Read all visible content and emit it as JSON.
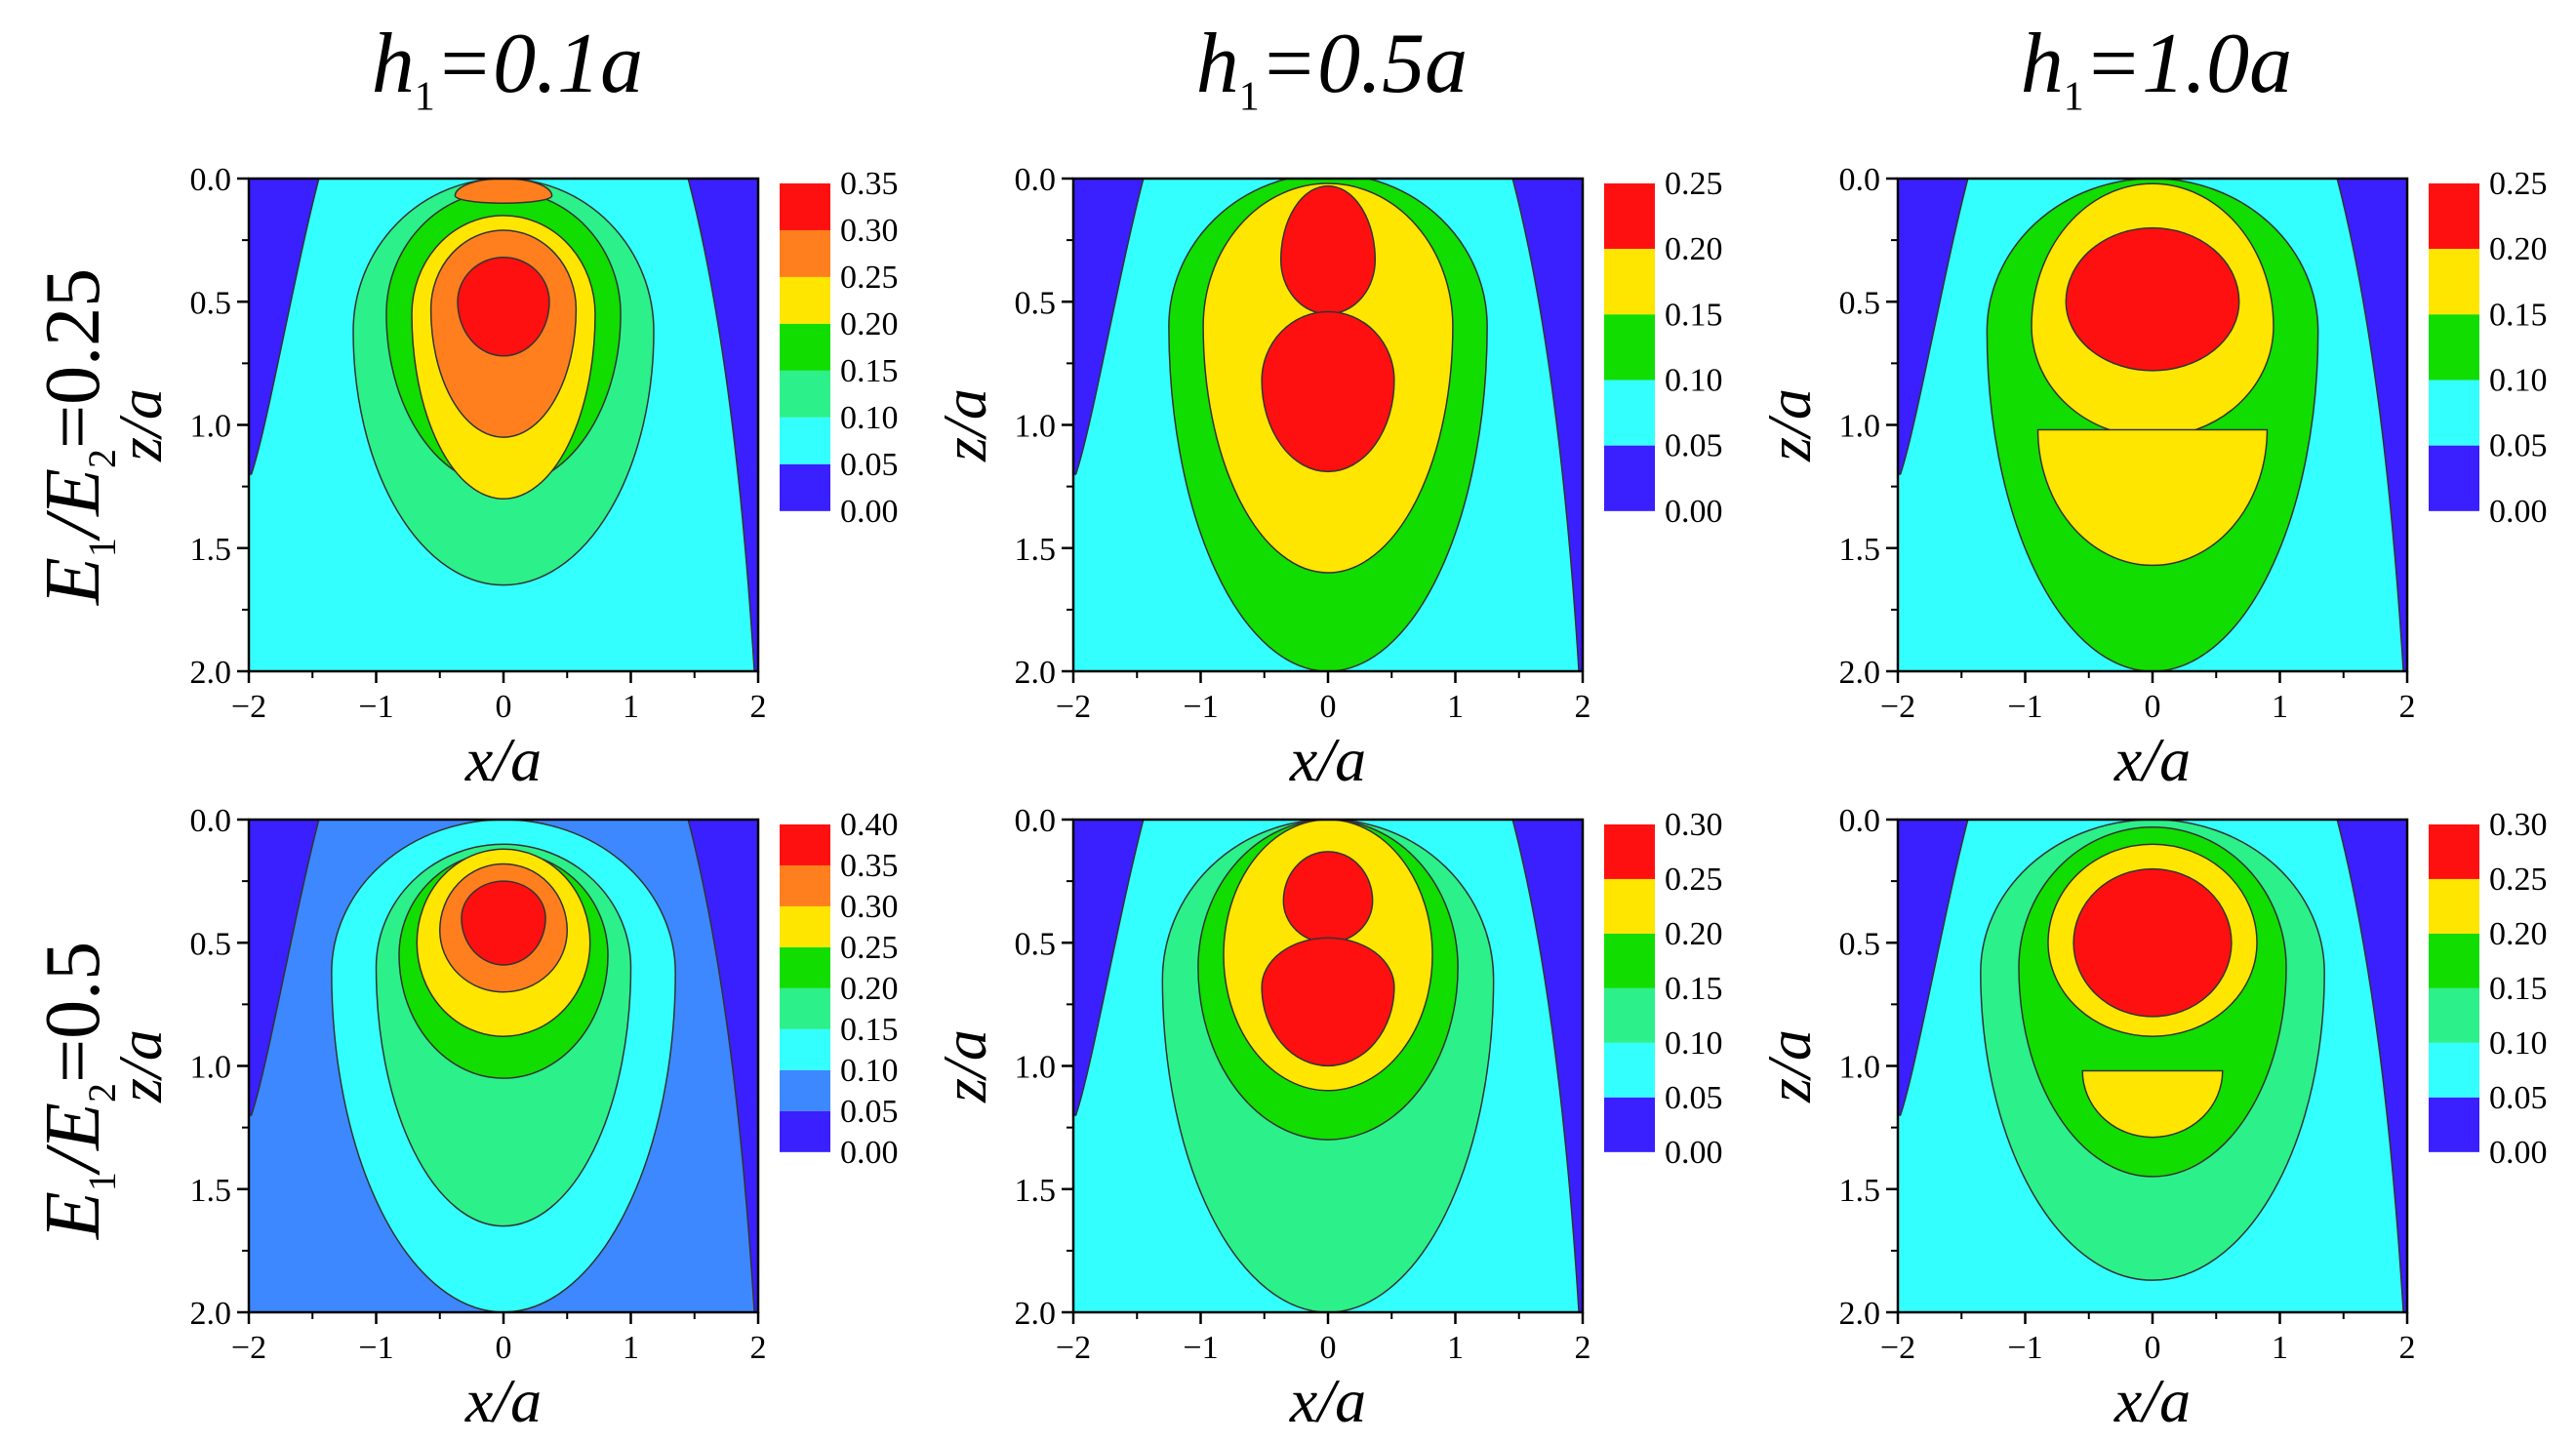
{
  "column_titles": [
    {
      "var": "h",
      "sub": "1",
      "rest": "=0.1a"
    },
    {
      "var": "h",
      "sub": "1",
      "rest": "=0.5a"
    },
    {
      "var": "h",
      "sub": "1",
      "rest": "=1.0a"
    }
  ],
  "row_labels": [
    {
      "e1": "E",
      "s1": "1",
      "mid": "/E",
      "s2": "2",
      "rest": "=0.25"
    },
    {
      "e1": "E",
      "s1": "1",
      "mid": "/E",
      "s2": "2",
      "rest": "=0.5"
    }
  ],
  "level_colors": {
    "0.00": "#3a1fff",
    "0.05": "#34ffff",
    "0.10": "#2cf08a",
    "0.15": "#11dd00",
    "0.20": "#ffe600",
    "0.25": "#ff7f1e",
    "0.30": "#ff1010",
    "0.35": "#ff1010"
  },
  "chart_data": [
    {
      "type": "contour",
      "row": 0,
      "col": 0,
      "xlabel": "x/a",
      "ylabel": "z/a",
      "xlim": [
        -2,
        2
      ],
      "ylim": [
        0,
        2
      ],
      "xticks": [
        "-2",
        "-1",
        "0",
        "1",
        "2"
      ],
      "yticks": [
        "0.0",
        "0.5",
        "1.0",
        "1.5",
        "2.0"
      ],
      "levels": [
        "0.35",
        "0.30",
        "0.25",
        "0.20",
        "0.15",
        "0.10",
        "0.05",
        "0.00"
      ],
      "level_fill": [
        "#ff1010",
        "#ff7f1e",
        "#ffe600",
        "#11dd00",
        "#2cf08a",
        "#34ffff",
        "#3a1fff"
      ],
      "background": "#34ffff",
      "regions": [
        {
          "color": "#2cf08a",
          "center": [
            0,
            0.62
          ],
          "rx": 1.18,
          "ry_up": 0.62,
          "ry_down": 1.03
        },
        {
          "color": "#11dd00",
          "center": [
            0,
            0.55
          ],
          "rx": 0.92,
          "ry_up": 0.5,
          "ry_down": 0.7
        },
        {
          "color": "#ffe600",
          "center": [
            0,
            0.55
          ],
          "rx": 0.72,
          "ry_up": 0.4,
          "ry_down": 0.75
        },
        {
          "color": "#ff7f1e",
          "center": [
            0,
            0.53
          ],
          "rx": 0.57,
          "ry_up": 0.32,
          "ry_down": 0.52
        },
        {
          "color": "#ff1010",
          "center": [
            0,
            0.5
          ],
          "rx": 0.36,
          "ry_up": 0.18,
          "ry_down": 0.22
        },
        {
          "color": "#ff7f1e",
          "center": [
            0,
            0.07
          ],
          "rx": 0.38,
          "ry_up": 0.07,
          "ry_down": 0.03
        }
      ]
    },
    {
      "type": "contour",
      "row": 0,
      "col": 1,
      "xlabel": "x/a",
      "ylabel": "z/a",
      "xlim": [
        -2,
        2
      ],
      "ylim": [
        0,
        2
      ],
      "xticks": [
        "-2",
        "-1",
        "0",
        "1",
        "2"
      ],
      "yticks": [
        "0.0",
        "0.5",
        "1.0",
        "1.5",
        "2.0"
      ],
      "levels": [
        "0.25",
        "0.20",
        "0.15",
        "0.10",
        "0.05",
        "0.00"
      ],
      "level_fill": [
        "#ff1010",
        "#ffe600",
        "#11dd00",
        "#34ffff",
        "#3a1fff"
      ],
      "background": "#34ffff",
      "regions": [
        {
          "color": "#11dd00",
          "center": [
            0,
            0.6
          ],
          "rx": 1.25,
          "ry_up": 0.62,
          "ry_down": 1.4
        },
        {
          "color": "#ffe600",
          "center": [
            0,
            0.6
          ],
          "rx": 0.98,
          "ry_up": 0.58,
          "ry_down": 1.0
        },
        {
          "color": "#ff1010",
          "center": [
            0,
            0.33
          ],
          "rx": 0.37,
          "ry_up": 0.3,
          "ry_down": 0.22
        },
        {
          "color": "#ff1010",
          "center": [
            0,
            0.82
          ],
          "rx": 0.52,
          "ry_up": 0.28,
          "ry_down": 0.37
        }
      ]
    },
    {
      "type": "contour",
      "row": 0,
      "col": 2,
      "xlabel": "x/a",
      "ylabel": "z/a",
      "xlim": [
        -2,
        2
      ],
      "ylim": [
        0,
        2
      ],
      "xticks": [
        "-2",
        "-1",
        "0",
        "1",
        "2"
      ],
      "yticks": [
        "0.0",
        "0.5",
        "1.0",
        "1.5",
        "2.0"
      ],
      "levels": [
        "0.25",
        "0.20",
        "0.15",
        "0.10",
        "0.05",
        "0.00"
      ],
      "level_fill": [
        "#ff1010",
        "#ffe600",
        "#11dd00",
        "#34ffff",
        "#3a1fff"
      ],
      "background": "#34ffff",
      "regions": [
        {
          "color": "#11dd00",
          "center": [
            0,
            0.62
          ],
          "rx": 1.3,
          "ry_up": 0.62,
          "ry_down": 1.38
        },
        {
          "color": "#ffe600",
          "center": [
            0,
            0.6
          ],
          "rx": 0.95,
          "ry_up": 0.58,
          "ry_down": 0.45
        },
        {
          "color": "#ffe600",
          "center": [
            0,
            1.02
          ],
          "rx": 0.9,
          "ry_up": 0.0,
          "ry_down": 0.55
        },
        {
          "color": "#ff1010",
          "center": [
            0,
            0.5
          ],
          "rx": 0.68,
          "ry_up": 0.3,
          "ry_down": 0.28
        }
      ]
    },
    {
      "type": "contour",
      "row": 1,
      "col": 0,
      "xlabel": "x/a",
      "ylabel": "z/a",
      "xlim": [
        -2,
        2
      ],
      "ylim": [
        0,
        2
      ],
      "xticks": [
        "-2",
        "-1",
        "0",
        "1",
        "2"
      ],
      "yticks": [
        "0.0",
        "0.5",
        "1.0",
        "1.5",
        "2.0"
      ],
      "levels": [
        "0.40",
        "0.35",
        "0.30",
        "0.25",
        "0.20",
        "0.15",
        "0.10",
        "0.05",
        "0.00"
      ],
      "level_fill": [
        "#ff1010",
        "#ff7f1e",
        "#ffe600",
        "#11dd00",
        "#2cf08a",
        "#34ffff",
        "#3d88ff",
        "#3a1fff"
      ],
      "background": "#3d88ff",
      "regions": [
        {
          "color": "#34ffff",
          "center": [
            0,
            0.62
          ],
          "rx": 1.35,
          "ry_up": 0.62,
          "ry_down": 1.38
        },
        {
          "color": "#2cf08a",
          "center": [
            0,
            0.6
          ],
          "rx": 1.0,
          "ry_up": 0.5,
          "ry_down": 1.05
        },
        {
          "color": "#11dd00",
          "center": [
            0,
            0.55
          ],
          "rx": 0.82,
          "ry_up": 0.42,
          "ry_down": 0.5
        },
        {
          "color": "#ffe600",
          "center": [
            0,
            0.5
          ],
          "rx": 0.68,
          "ry_up": 0.38,
          "ry_down": 0.38
        },
        {
          "color": "#ff7f1e",
          "center": [
            0,
            0.45
          ],
          "rx": 0.5,
          "ry_up": 0.27,
          "ry_down": 0.25
        },
        {
          "color": "#ff1010",
          "center": [
            0,
            0.4
          ],
          "rx": 0.33,
          "ry_up": 0.15,
          "ry_down": 0.19
        }
      ]
    },
    {
      "type": "contour",
      "row": 1,
      "col": 1,
      "xlabel": "x/a",
      "ylabel": "z/a",
      "xlim": [
        -2,
        2
      ],
      "ylim": [
        0,
        2
      ],
      "xticks": [
        "-2",
        "-1",
        "0",
        "1",
        "2"
      ],
      "yticks": [
        "0.0",
        "0.5",
        "1.0",
        "1.5",
        "2.0"
      ],
      "levels": [
        "0.30",
        "0.25",
        "0.20",
        "0.15",
        "0.10",
        "0.05",
        "0.00"
      ],
      "level_fill": [
        "#ff1010",
        "#ffe600",
        "#11dd00",
        "#2cf08a",
        "#34ffff",
        "#3a1fff"
      ],
      "background": "#34ffff",
      "regions": [
        {
          "color": "#2cf08a",
          "center": [
            0,
            0.65
          ],
          "rx": 1.3,
          "ry_up": 0.65,
          "ry_down": 1.35
        },
        {
          "color": "#11dd00",
          "center": [
            0,
            0.6
          ],
          "rx": 1.02,
          "ry_up": 0.6,
          "ry_down": 0.7
        },
        {
          "color": "#ffe600",
          "center": [
            0,
            0.55
          ],
          "rx": 0.82,
          "ry_up": 0.55,
          "ry_down": 0.55
        },
        {
          "color": "#ff1010",
          "center": [
            0,
            0.33
          ],
          "rx": 0.35,
          "ry_up": 0.2,
          "ry_down": 0.17
        },
        {
          "color": "#ff1010",
          "center": [
            0,
            0.68
          ],
          "rx": 0.52,
          "ry_up": 0.2,
          "ry_down": 0.32
        }
      ]
    },
    {
      "type": "contour",
      "row": 1,
      "col": 2,
      "xlabel": "x/a",
      "ylabel": "z/a",
      "xlim": [
        -2,
        2
      ],
      "ylim": [
        0,
        2
      ],
      "xticks": [
        "-2",
        "-1",
        "0",
        "1",
        "2"
      ],
      "yticks": [
        "0.0",
        "0.5",
        "1.0",
        "1.5",
        "2.0"
      ],
      "levels": [
        "0.30",
        "0.25",
        "0.20",
        "0.15",
        "0.10",
        "0.05",
        "0.00"
      ],
      "level_fill": [
        "#ff1010",
        "#ffe600",
        "#11dd00",
        "#2cf08a",
        "#34ffff",
        "#3a1fff"
      ],
      "background": "#34ffff",
      "regions": [
        {
          "color": "#2cf08a",
          "center": [
            0,
            0.62
          ],
          "rx": 1.35,
          "ry_up": 0.62,
          "ry_down": 1.25
        },
        {
          "color": "#11dd00",
          "center": [
            0,
            0.6
          ],
          "rx": 1.05,
          "ry_up": 0.57,
          "ry_down": 0.85
        },
        {
          "color": "#ffe600",
          "center": [
            0,
            0.5
          ],
          "rx": 0.82,
          "ry_up": 0.4,
          "ry_down": 0.38
        },
        {
          "color": "#ffe600",
          "center": [
            0,
            1.02
          ],
          "rx": 0.55,
          "ry_up": 0.0,
          "ry_down": 0.27
        },
        {
          "color": "#ff1010",
          "center": [
            0,
            0.5
          ],
          "rx": 0.62,
          "ry_up": 0.3,
          "ry_down": 0.3
        }
      ]
    }
  ]
}
